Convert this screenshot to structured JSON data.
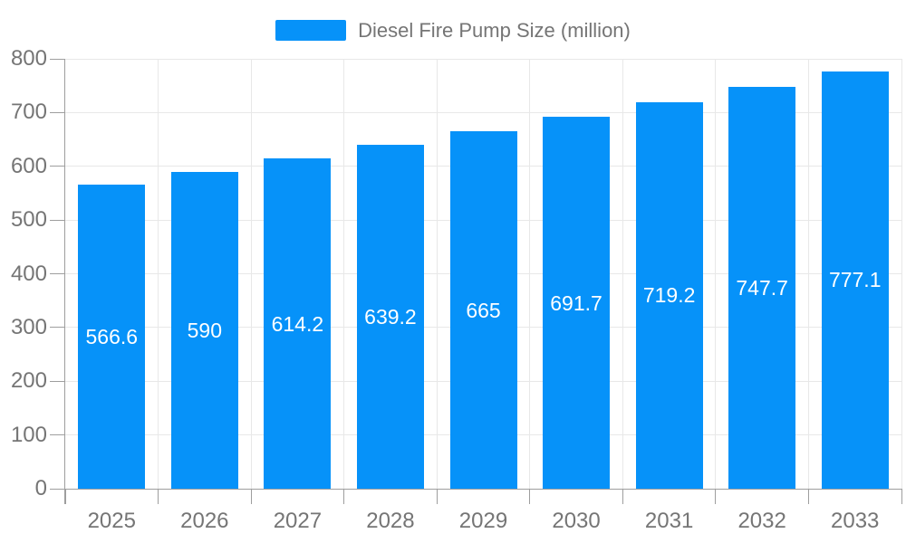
{
  "chart_data": {
    "type": "bar",
    "title": "",
    "legend": "Diesel Fire Pump Size (million)",
    "legend_position": "top-center",
    "categories": [
      "2025",
      "2026",
      "2027",
      "2028",
      "2029",
      "2030",
      "2031",
      "2032",
      "2033"
    ],
    "series": [
      {
        "name": "Diesel Fire Pump Size (million)",
        "values": [
          566.6,
          590,
          614.2,
          639.2,
          665,
          691.7,
          719.2,
          747.7,
          777.1
        ],
        "value_labels": [
          "566.6",
          "590",
          "614.2",
          "639.2",
          "665",
          "691.7",
          "719.2",
          "747.7",
          "777.1"
        ]
      }
    ],
    "xlabel": "",
    "ylabel": "",
    "ylim": [
      0,
      800
    ],
    "ytick_step": 100,
    "yticks": [
      "0",
      "100",
      "200",
      "300",
      "400",
      "500",
      "600",
      "700",
      "800"
    ],
    "grid": true,
    "value_labels_position": "inside-middle",
    "colors": {
      "bar": "#0692f9",
      "axis_line": "#9e9e9e",
      "grid_line": "#e8e8e8",
      "axis_text": "#757575",
      "legend_text": "#757575",
      "value_text": "#ffffff",
      "background": "#ffffff"
    }
  }
}
